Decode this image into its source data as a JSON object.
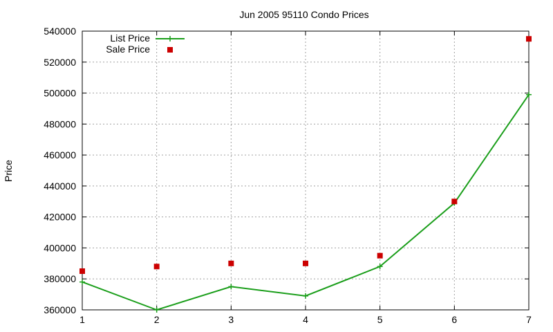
{
  "chart_data": {
    "type": "line",
    "title": "Jun 2005 95110 Condo Prices",
    "xlabel": "",
    "ylabel": "Price",
    "x": [
      1,
      2,
      3,
      4,
      5,
      6,
      7
    ],
    "xlim": [
      1,
      7
    ],
    "ylim": [
      360000,
      540000
    ],
    "x_ticks": [
      "1",
      "2",
      "3",
      "4",
      "5",
      "6",
      "7"
    ],
    "y_ticks": [
      "360000",
      "380000",
      "400000",
      "420000",
      "440000",
      "460000",
      "480000",
      "500000",
      "520000",
      "540000"
    ],
    "grid": true,
    "legend_position": "top-left",
    "series": [
      {
        "name": "List Price",
        "style": "line-with-plus-markers",
        "color": "#1a9e1a",
        "values": [
          378000,
          360000,
          375000,
          369000,
          388000,
          429000,
          499000
        ]
      },
      {
        "name": "Sale Price",
        "style": "square-markers",
        "color": "#cc0000",
        "values": [
          385000,
          388000,
          390000,
          390000,
          395000,
          430000,
          535000
        ]
      }
    ]
  }
}
